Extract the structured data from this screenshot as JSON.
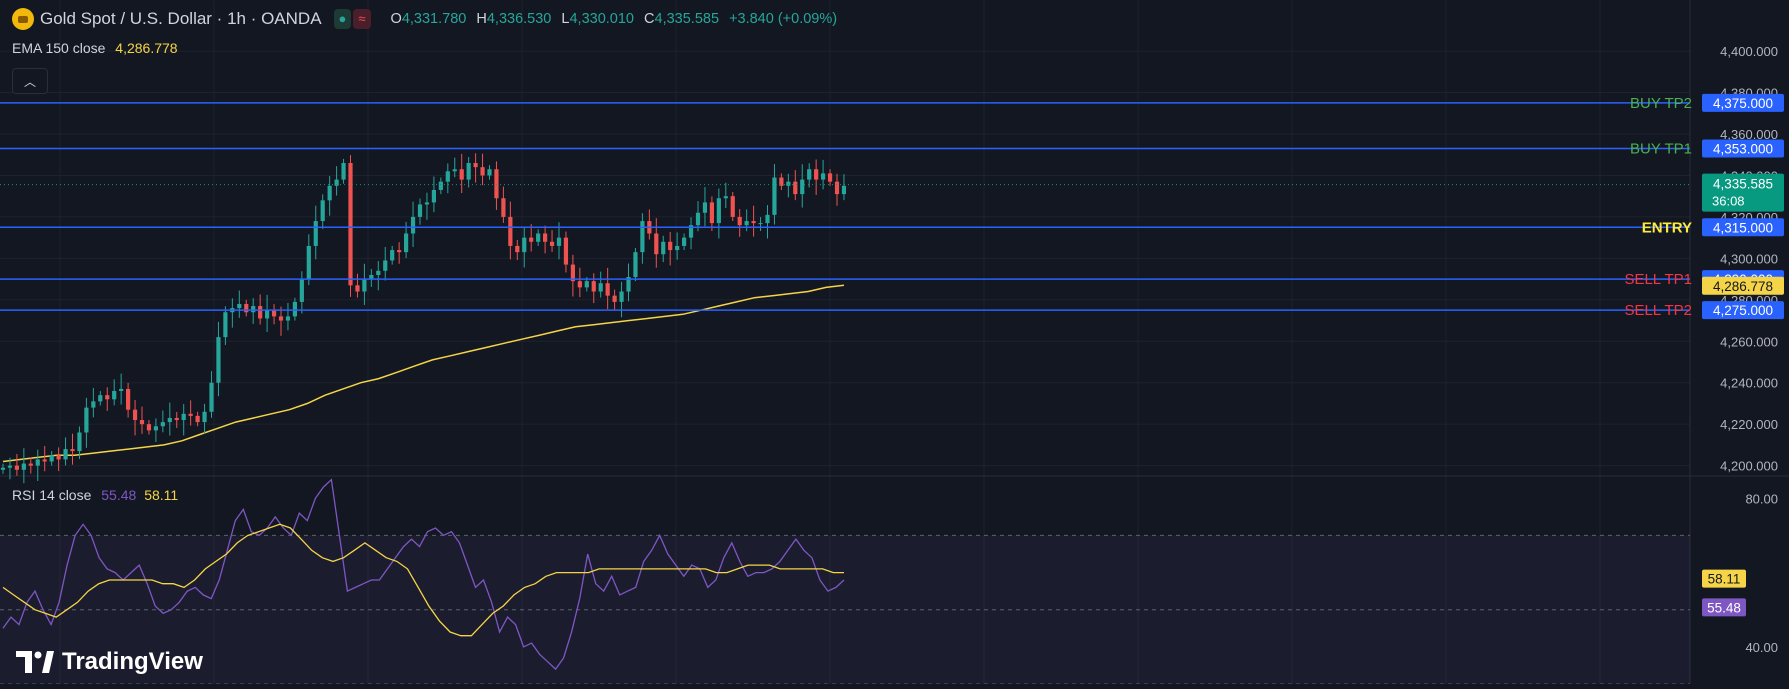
{
  "header": {
    "symbol_title": "Gold Spot / U.S. Dollar · 1h · OANDA",
    "ohlc": {
      "o_label": "O",
      "o": "4,331.780",
      "h_label": "H",
      "h": "4,336.530",
      "l_label": "L",
      "l": "4,330.010",
      "c_label": "C",
      "c": "4,335.585",
      "change": "+3.840 (+0.09%)"
    },
    "pill_icons": [
      "dot-icon",
      "wave-icon"
    ]
  },
  "ema_legend": {
    "label": "EMA 150 close",
    "value": "4,286.778"
  },
  "rsi_legend": {
    "label": "RSI 14 close",
    "value_rsi": "55.48",
    "value_ma": "58.11"
  },
  "branding": {
    "text": "TradingView"
  },
  "colors": {
    "up": "#26a69a",
    "down": "#ef5350",
    "ema": "#f5d547",
    "hline": "#2962ff",
    "rsi": "#7e57c2",
    "rsi_ma": "#f5d547",
    "last": "#089981",
    "buy_text": "#4caf50",
    "sell_text": "#f23645",
    "entry_text": "#ffeb3b"
  },
  "chart_data": [
    {
      "type": "candlestick",
      "title": "Gold Spot / U.S. Dollar · 1h · OANDA",
      "ylim": [
        4195,
        4415
      ],
      "y_ticks": [
        "4,200.000",
        "4,220.000",
        "4,240.000",
        "4,260.000",
        "4,280.000",
        "4,300.000",
        "4,320.000",
        "4,340.000",
        "4,360.000",
        "4,380.000",
        "4,400.000"
      ],
      "y_tick_values": [
        4200,
        4220,
        4240,
        4260,
        4280,
        4300,
        4320,
        4340,
        4360,
        4380,
        4400
      ],
      "closes": [
        4199,
        4200,
        4198,
        4201,
        4200,
        4203,
        4202,
        4205,
        4203,
        4208,
        4207,
        4216,
        4228,
        4231,
        4234,
        4232,
        4236,
        4237,
        4227,
        4222,
        4220,
        4217,
        4219,
        4221,
        4223,
        4222,
        4225,
        4224,
        4221,
        4226,
        4240,
        4262,
        4274,
        4276,
        4278,
        4274,
        4277,
        4271,
        4275,
        4272,
        4270,
        4272,
        4279,
        4290,
        4306,
        4318,
        4328,
        4335,
        4338,
        4346,
        4287,
        4284,
        4290,
        4292,
        4294,
        4299,
        4304,
        4303,
        4312,
        4320,
        4326,
        4327,
        4333,
        4337,
        4342,
        4343,
        4338,
        4346,
        4344,
        4340,
        4343,
        4329,
        4320,
        4306,
        4303,
        4310,
        4308,
        4312,
        4308,
        4306,
        4310,
        4297,
        4289,
        4286,
        4289,
        4284,
        4288,
        4282,
        4279,
        4284,
        4291,
        4303,
        4318,
        4312,
        4302,
        4308,
        4304,
        4306,
        4310,
        4316,
        4322,
        4327,
        4317,
        4329,
        4330,
        4320,
        4316,
        4318,
        4317,
        4317,
        4321,
        4339,
        4335,
        4337,
        4331,
        4338,
        4343,
        4338,
        4341,
        4337,
        4331,
        4335
      ],
      "ema_label": "EMA 150 close",
      "ema_value": 4286.778,
      "ema_curve": [
        4202,
        4203,
        4204,
        4205,
        4205,
        4206,
        4207,
        4208,
        4209,
        4210,
        4212,
        4215,
        4218,
        4221,
        4223,
        4225,
        4227,
        4230,
        4234,
        4237,
        4240,
        4242,
        4245,
        4248,
        4251,
        4253,
        4255,
        4257,
        4259,
        4261,
        4263,
        4265,
        4267,
        4268,
        4269,
        4270,
        4271,
        4272,
        4273,
        4275,
        4277,
        4279,
        4281,
        4282,
        4283,
        4284,
        4286,
        4287
      ],
      "levels": [
        {
          "label": "BUY TP2",
          "value": 4375.0,
          "value_text": "4,375.000"
        },
        {
          "label": "BUY TP1",
          "value": 4353.0,
          "value_text": "4,353.000"
        },
        {
          "label": "ENTRY",
          "value": 4315.0,
          "value_text": "4,315.000"
        },
        {
          "label": "SELL TP1",
          "value": 4290.0,
          "value_text": "4,290.000"
        },
        {
          "label": "SELL TP2",
          "value": 4275.0,
          "value_text": "4,275.000"
        }
      ],
      "last_price": {
        "value": 4335.585,
        "value_text": "4,335.585",
        "countdown": "36:08"
      },
      "ema_price_text": "4,286.778"
    },
    {
      "type": "line",
      "title": "RSI 14 close",
      "ylim": [
        30,
        86
      ],
      "y_ticks": [
        "80.00",
        "40.00"
      ],
      "y_tick_values": [
        80,
        40
      ],
      "bands": [
        70,
        50,
        30
      ],
      "series": [
        {
          "name": "RSI",
          "values": [
            45,
            48,
            46,
            52,
            55,
            50,
            46,
            52,
            62,
            70,
            73,
            70,
            64,
            61,
            60,
            58,
            60,
            62,
            57,
            51,
            49,
            50,
            52,
            55,
            56,
            54,
            53,
            58,
            66,
            74,
            77,
            71,
            70,
            72,
            75,
            72,
            70,
            76,
            74,
            80,
            83,
            85,
            70,
            55,
            56,
            57,
            58,
            58,
            61,
            64,
            67,
            69,
            67,
            71,
            72,
            70,
            71,
            68,
            62,
            56,
            58,
            52,
            44,
            48,
            46,
            40,
            41,
            38,
            36,
            34,
            37,
            44,
            53,
            65,
            57,
            55,
            59,
            54,
            55,
            56,
            63,
            66,
            70,
            65,
            62,
            59,
            62,
            61,
            56,
            58,
            64,
            68,
            63,
            59,
            60,
            60,
            61,
            63,
            66,
            69,
            66,
            64,
            58,
            55,
            56,
            58
          ]
        },
        {
          "name": "MA",
          "values": [
            56,
            54,
            52,
            50,
            49,
            48,
            50,
            52,
            55,
            57,
            58,
            58,
            58,
            58,
            58,
            57,
            57,
            56,
            58,
            61,
            63,
            65,
            68,
            70,
            71,
            72,
            73,
            72,
            69,
            66,
            64,
            63,
            64,
            66,
            68,
            66,
            64,
            63,
            61,
            56,
            51,
            47,
            44,
            43,
            43,
            46,
            49,
            51,
            54,
            56,
            57,
            59,
            60,
            60,
            60,
            60,
            61,
            61,
            61,
            61,
            61,
            61,
            61,
            61,
            61,
            61,
            61,
            60,
            60,
            61,
            62,
            62,
            62,
            61,
            61,
            61,
            61,
            61,
            60,
            60
          ]
        }
      ],
      "rsi_value_text": "55.48",
      "ma_value_text": "58.11"
    }
  ]
}
